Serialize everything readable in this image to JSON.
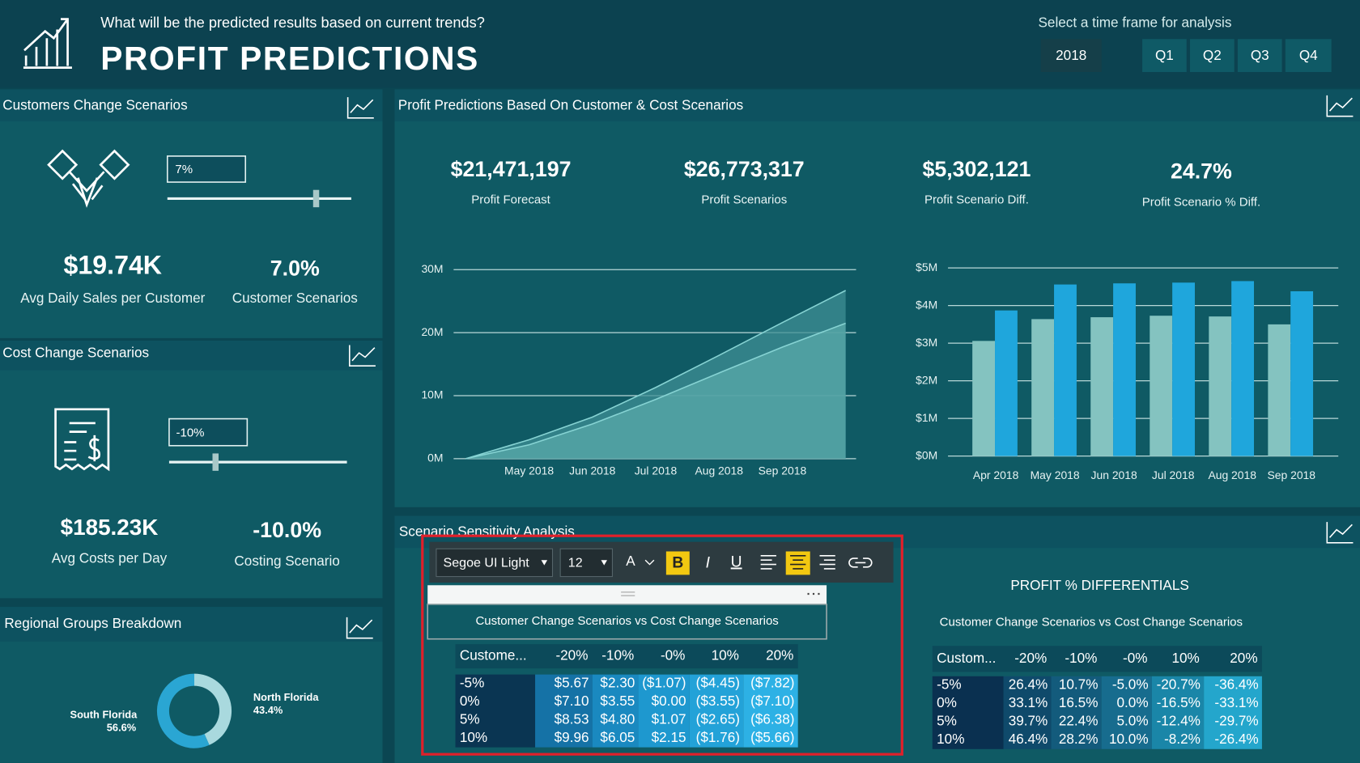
{
  "header": {
    "question": "What will be the predicted results based on current trends?",
    "title": "PROFIT PREDICTIONS",
    "filter_label": "Select a time frame for analysis",
    "buttons": [
      "2018",
      "Q1",
      "Q2",
      "Q3",
      "Q4"
    ]
  },
  "customers_panel": {
    "title": "Customers Change Scenarios",
    "input": "7%",
    "kpis": [
      {
        "value": "$19.74K",
        "label": "Avg Daily Sales per Customer"
      },
      {
        "value": "7.0%",
        "label": "Customer Scenarios"
      }
    ]
  },
  "cost_panel": {
    "title": "Cost Change Scenarios",
    "input": "-10%",
    "kpis": [
      {
        "value": "$185.23K",
        "label": "Avg Costs per Day"
      },
      {
        "value": "-10.0%",
        "label": "Costing Scenario"
      }
    ]
  },
  "regional_panel": {
    "title": "Regional Groups Breakdown"
  },
  "main_panel": {
    "title": "Profit Predictions Based On Customer & Cost Scenarios",
    "kpis": [
      {
        "value": "$21,471,197",
        "label": "Profit Forecast"
      },
      {
        "value": "$26,773,317",
        "label": "Profit Scenarios"
      },
      {
        "value": "$5,302,121",
        "label": "Profit Scenario Diff."
      },
      {
        "value": "24.7%",
        "label": "Profit Scenario % Diff."
      }
    ]
  },
  "chart_data": [
    {
      "type": "area",
      "categories": [
        null,
        "May 2018",
        "Jun 2018",
        "Jul 2018",
        "Aug 2018",
        "Sep 2018",
        null
      ],
      "series": [
        {
          "color": "#3f8f94",
          "values": [
            0,
            3.0,
            6.6,
            11.3,
            16.4,
            21.6,
            26.7
          ]
        },
        {
          "color": "#5aa9aa",
          "values": [
            0,
            2.2,
            5.5,
            9.4,
            13.6,
            17.7,
            21.5
          ]
        }
      ],
      "ylim": [
        0,
        30
      ],
      "yticks": [
        {
          "value": 0,
          "label": "0M"
        },
        {
          "value": 10,
          "label": "10M"
        },
        {
          "value": 20,
          "label": "20M"
        },
        {
          "value": 30,
          "label": "30M"
        }
      ],
      "grid": true
    },
    {
      "type": "bar",
      "categories": [
        "Apr 2018",
        "May 2018",
        "Jun 2018",
        "Jul 2018",
        "Aug 2018",
        "Sep 2018"
      ],
      "series": [
        {
          "color": "#84c3c0",
          "values": [
            3.06,
            3.64,
            3.69,
            3.73,
            3.71,
            3.5
          ]
        },
        {
          "color": "#1fa6dc",
          "values": [
            3.87,
            4.56,
            4.59,
            4.61,
            4.65,
            4.38
          ]
        }
      ],
      "ylim": [
        0,
        5
      ],
      "yticks": [
        {
          "value": 0,
          "label": "$0M"
        },
        {
          "value": 1,
          "label": "$1M"
        },
        {
          "value": 2,
          "label": "$2M"
        },
        {
          "value": 3,
          "label": "$3M"
        },
        {
          "value": 4,
          "label": "$4M"
        },
        {
          "value": 5,
          "label": "$5M"
        }
      ],
      "grid": true
    },
    {
      "type": "donut",
      "categories": [
        "North Florida",
        "South Florida"
      ],
      "values": [
        43.4,
        56.6
      ],
      "value_labels": [
        "43.4%",
        "56.6%"
      ],
      "colors": [
        "#a9d9de",
        "#2aa6d3"
      ]
    }
  ],
  "sensitivity": {
    "title": "Scenario Sensitivity Analysis",
    "toolbar": {
      "font": "Segoe UI Light",
      "size": "12",
      "buttons": [
        "A",
        "B",
        "I",
        "U"
      ]
    }
  },
  "tables": [
    {
      "title": "Customer Change Scenarios vs Cost Change Scenarios",
      "header": [
        "Custome...",
        "-20%",
        "-10%",
        "-0%",
        "10%",
        "20%"
      ],
      "rows": [
        [
          "-5%",
          "$5.67",
          "$2.30",
          "($1.07)",
          "($4.45)",
          "($7.82)"
        ],
        [
          "0%",
          "$7.10",
          "$3.55",
          "$0.00",
          "($3.55)",
          "($7.10)"
        ],
        [
          "5%",
          "$8.53",
          "$4.80",
          "$1.07",
          "($2.65)",
          "($6.38)"
        ],
        [
          "10%",
          "$9.96",
          "$6.05",
          "$2.15",
          "($1.76)",
          "($5.66)"
        ]
      ]
    },
    {
      "heading": "PROFIT % DIFFERENTIALS",
      "title": "Customer Change Scenarios vs Cost Change Scenarios",
      "header": [
        "Custom...",
        "-20%",
        "-10%",
        "-0%",
        "10%",
        "20%"
      ],
      "rows": [
        [
          "-5%",
          "26.4%",
          "10.7%",
          "-5.0%",
          "-20.7%",
          "-36.4%"
        ],
        [
          "0%",
          "33.1%",
          "16.5%",
          "0.0%",
          "-16.5%",
          "-33.1%"
        ],
        [
          "5%",
          "39.7%",
          "22.4%",
          "5.0%",
          "-12.4%",
          "-29.7%"
        ],
        [
          "10%",
          "46.4%",
          "28.2%",
          "10.0%",
          "-8.2%",
          "-26.4%"
        ]
      ]
    }
  ]
}
